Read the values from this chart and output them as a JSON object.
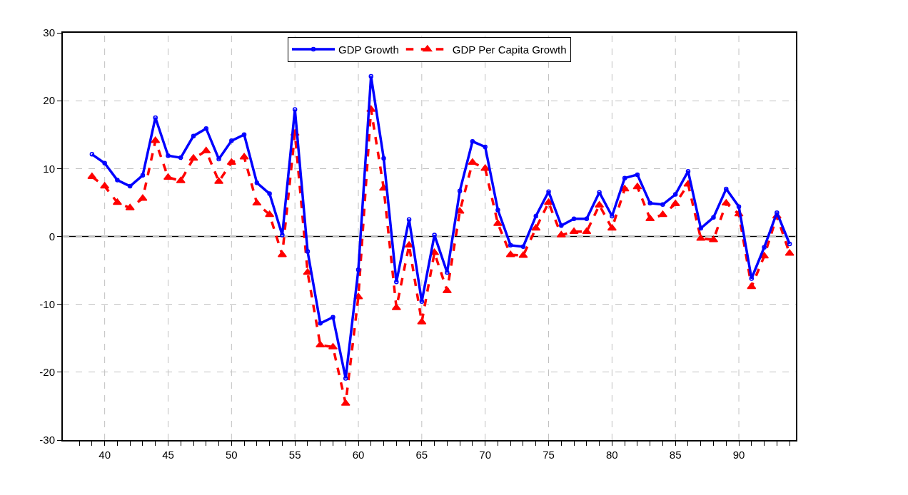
{
  "chart_data": {
    "type": "line",
    "x": [
      39,
      40,
      41,
      42,
      43,
      44,
      45,
      46,
      47,
      48,
      49,
      50,
      51,
      52,
      53,
      54,
      55,
      56,
      57,
      58,
      59,
      60,
      61,
      62,
      63,
      64,
      65,
      66,
      67,
      68,
      69,
      70,
      71,
      72,
      73,
      74,
      75,
      76,
      77,
      78,
      79,
      80,
      81,
      82,
      83,
      84,
      85,
      86,
      87,
      88,
      89,
      90,
      91,
      92,
      93,
      94
    ],
    "series": [
      {
        "name": "GDP Growth",
        "color": "#0000ff",
        "marker": "circle",
        "line_style": "solid",
        "values": [
          12.1,
          10.8,
          8.3,
          7.4,
          9.0,
          17.5,
          11.9,
          11.6,
          14.8,
          15.9,
          11.4,
          14.1,
          15.0,
          7.9,
          6.3,
          0.2,
          18.7,
          -2.2,
          -12.8,
          -11.9,
          -20.9,
          -4.9,
          23.6,
          11.5,
          -6.7,
          2.5,
          -9.6,
          0.2,
          -5.3,
          6.7,
          14.0,
          13.2,
          3.9,
          -1.3,
          -1.5,
          3.0,
          6.6,
          1.6,
          2.6,
          2.6,
          6.5,
          3.0,
          8.6,
          9.1,
          4.9,
          4.7,
          6.2,
          9.6,
          1.2,
          2.8,
          7.0,
          4.4,
          -6.2,
          -1.6,
          3.5,
          -1.1
        ]
      },
      {
        "name": "GDP Per Capita Growth",
        "color": "#ff0000",
        "marker": "triangle",
        "line_style": "dashed",
        "values": [
          8.8,
          7.4,
          5.0,
          4.2,
          5.6,
          14.1,
          8.7,
          8.2,
          11.5,
          12.6,
          8.1,
          10.9,
          11.7,
          4.9,
          3.2,
          -2.7,
          15.2,
          -5.3,
          -16.0,
          -16.3,
          -24.6,
          -8.9,
          18.7,
          7.1,
          -10.5,
          -1.3,
          -12.6,
          -2.4,
          -8.0,
          3.7,
          10.9,
          10.0,
          1.9,
          -2.7,
          -2.8,
          1.2,
          5.0,
          0.2,
          0.7,
          0.7,
          4.6,
          1.2,
          7.0,
          7.3,
          2.6,
          3.2,
          4.8,
          7.7,
          -0.3,
          -0.5,
          4.9,
          3.3,
          -7.4,
          -2.9,
          3.0,
          -2.5
        ]
      }
    ],
    "xlim": [
      36.7,
      94.5
    ],
    "xticks": [
      {
        "value": 38,
        "label": null
      },
      {
        "value": 39,
        "label": null
      },
      40,
      {
        "value": 41,
        "label": null
      },
      {
        "value": 42,
        "label": null
      },
      {
        "value": 43,
        "label": null
      },
      {
        "value": 44,
        "label": null
      },
      45,
      {
        "value": 46,
        "label": null
      },
      {
        "value": 47,
        "label": null
      },
      {
        "value": 48,
        "label": null
      },
      {
        "value": 49,
        "label": null
      },
      50,
      {
        "value": 51,
        "label": null
      },
      {
        "value": 52,
        "label": null
      },
      {
        "value": 53,
        "label": null
      },
      {
        "value": 54,
        "label": null
      },
      55,
      {
        "value": 56,
        "label": null
      },
      {
        "value": 57,
        "label": null
      },
      {
        "value": 58,
        "label": null
      },
      {
        "value": 59,
        "label": null
      },
      60,
      {
        "value": 61,
        "label": null
      },
      {
        "value": 62,
        "label": null
      },
      {
        "value": 63,
        "label": null
      },
      {
        "value": 64,
        "label": null
      },
      65,
      {
        "value": 66,
        "label": null
      },
      {
        "value": 67,
        "label": null
      },
      {
        "value": 68,
        "label": null
      },
      {
        "value": 69,
        "label": null
      },
      70,
      {
        "value": 71,
        "label": null
      },
      {
        "value": 72,
        "label": null
      },
      {
        "value": 73,
        "label": null
      },
      {
        "value": 74,
        "label": null
      },
      75,
      {
        "value": 76,
        "label": null
      },
      {
        "value": 77,
        "label": null
      },
      {
        "value": 78,
        "label": null
      },
      {
        "value": 79,
        "label": null
      },
      80,
      {
        "value": 81,
        "label": null
      },
      {
        "value": 82,
        "label": null
      },
      {
        "value": 83,
        "label": null
      },
      {
        "value": 84,
        "label": null
      },
      85,
      {
        "value": 86,
        "label": null
      },
      {
        "value": 87,
        "label": null
      },
      {
        "value": 88,
        "label": null
      },
      {
        "value": 89,
        "label": null
      },
      90,
      {
        "value": 91,
        "label": null
      },
      {
        "value": 92,
        "label": null
      },
      {
        "value": 93,
        "label": null
      },
      {
        "value": 94,
        "label": null
      }
    ],
    "ylim": [
      -30,
      30
    ],
    "yticks": [
      -30,
      -20,
      -10,
      0,
      10,
      20,
      30
    ],
    "ref_lines": [
      {
        "axis": "y",
        "value": 0,
        "color": "#000000",
        "line_style": "solid"
      }
    ],
    "grid": true,
    "legend": "top"
  }
}
